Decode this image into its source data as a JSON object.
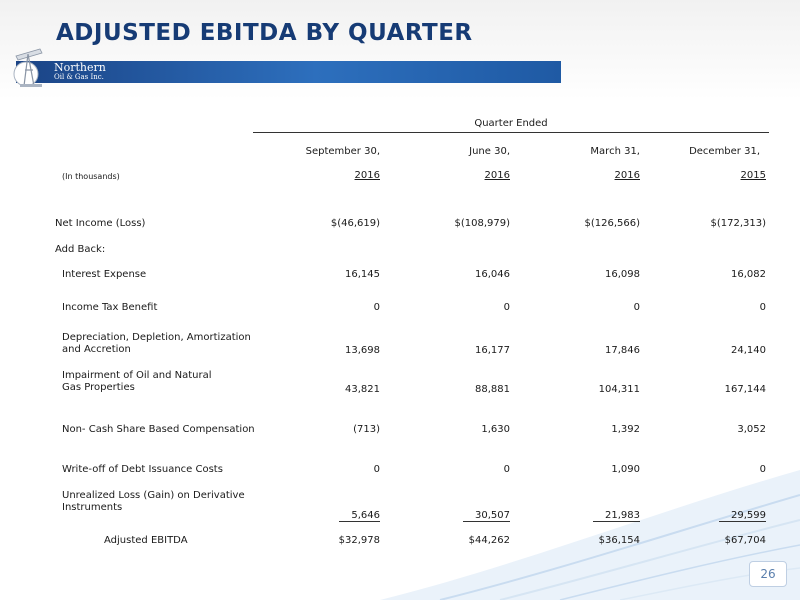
{
  "title": "ADJUSTED EBITDA BY QUARTER",
  "logo": {
    "line1": "Northern",
    "line2": "Oil & Gas Inc."
  },
  "table": {
    "group_header": "Quarter Ended",
    "units": "(In thousands)",
    "columns": [
      {
        "month_day": "September 30,",
        "year": "2016"
      },
      {
        "month_day": "June 30,",
        "year": "2016"
      },
      {
        "month_day": "March 31,",
        "year": "2016"
      },
      {
        "month_day": "December 31,",
        "year": "2015"
      }
    ],
    "rows": [
      {
        "label": "Net Income (Loss)",
        "values": [
          "$(46,619)",
          "$(108,979)",
          "$(126,566)",
          "$(172,313)"
        ]
      },
      {
        "label": "Add Back:",
        "values": []
      },
      {
        "label": "Interest Expense",
        "values": [
          "16,145",
          "16,046",
          "16,098",
          "16,082"
        ]
      },
      {
        "label": "Income Tax Benefit",
        "values": [
          "0",
          "0",
          "0",
          "0"
        ]
      },
      {
        "label": "Depreciation, Depletion, Amortization",
        "label2": "and Accretion",
        "values": [
          "13,698",
          "16,177",
          "17,846",
          "24,140"
        ]
      },
      {
        "label": "Impairment of Oil and Natural",
        "label2": "Gas Properties",
        "values": [
          "43,821",
          "88,881",
          "104,311",
          "167,144"
        ]
      },
      {
        "label": "Non- Cash Share Based Compensation",
        "values": [
          "(713)",
          "1,630",
          "1,392",
          "3,052"
        ]
      },
      {
        "label": "Write-off of Debt Issuance Costs",
        "values": [
          "0",
          "0",
          "1,090",
          "0"
        ]
      },
      {
        "label": "Unrealized Loss (Gain) on Derivative",
        "label2": "Instruments",
        "values": [
          "5,646",
          "30,507",
          "21,983",
          "29,599"
        ]
      },
      {
        "label": "Adjusted EBITDA",
        "values": [
          "$32,978",
          "$44,262",
          "$36,154",
          "$67,704"
        ]
      }
    ]
  },
  "page_number": "26",
  "colors": {
    "title": "#163b75",
    "bar": "#1f5aa4",
    "swirl": "#c9dcf0"
  }
}
